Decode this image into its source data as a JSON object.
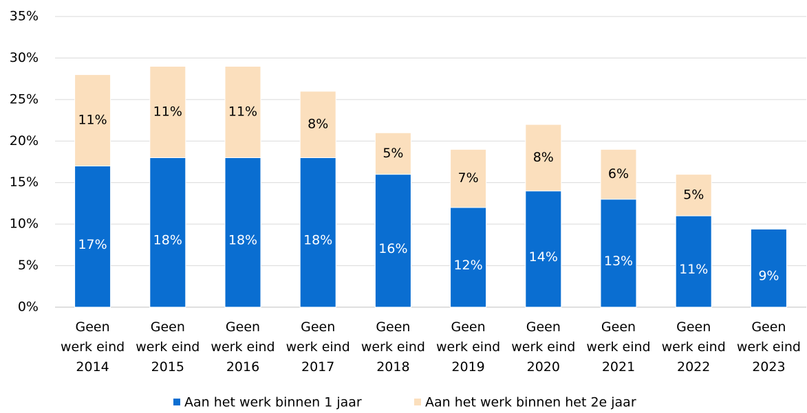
{
  "chart_data": {
    "type": "stacked_bar",
    "categories": [
      "Geen\nwerk eind\n2014",
      "Geen\nwerk eind\n2015",
      "Geen\nwerk eind\n2016",
      "Geen\nwerk eind\n2017",
      "Geen\nwerk eind\n2018",
      "Geen\nwerk eind\n2019",
      "Geen\nwerk eind\n2020",
      "Geen\nwerk eind\n2021",
      "Geen\nwerk eind\n2022",
      "Geen\nwerk eind\n2023"
    ],
    "series": [
      {
        "name": "Aan het werk binnen 1 jaar",
        "color": "#0a6ed1",
        "label_color": "#ffffff",
        "values": [
          17,
          18,
          18,
          18,
          16,
          12,
          14,
          13,
          11,
          9.4
        ],
        "value_labels": [
          "17%",
          "18%",
          "18%",
          "18%",
          "16%",
          "12%",
          "14%",
          "13%",
          "11%",
          "9%"
        ]
      },
      {
        "name": "Aan het werk binnen het 2e jaar",
        "color": "#fbdfbd",
        "label_color": "#000000",
        "values": [
          11,
          11,
          11,
          8,
          5,
          7,
          8,
          6,
          5,
          null
        ],
        "value_labels": [
          "11%",
          "11%",
          "11%",
          "8%",
          "5%",
          "7%",
          "8%",
          "6%",
          "5%",
          null
        ]
      }
    ],
    "ylim": [
      0,
      35
    ],
    "yticks": [
      {
        "value": 0,
        "label": "0%"
      },
      {
        "value": 5,
        "label": "5%"
      },
      {
        "value": 10,
        "label": "10%"
      },
      {
        "value": 15,
        "label": "15%"
      },
      {
        "value": 20,
        "label": "20%"
      },
      {
        "value": 25,
        "label": "25%"
      },
      {
        "value": 30,
        "label": "30%"
      },
      {
        "value": 35,
        "label": "35%"
      }
    ],
    "grid": true,
    "legend": "bottom"
  }
}
